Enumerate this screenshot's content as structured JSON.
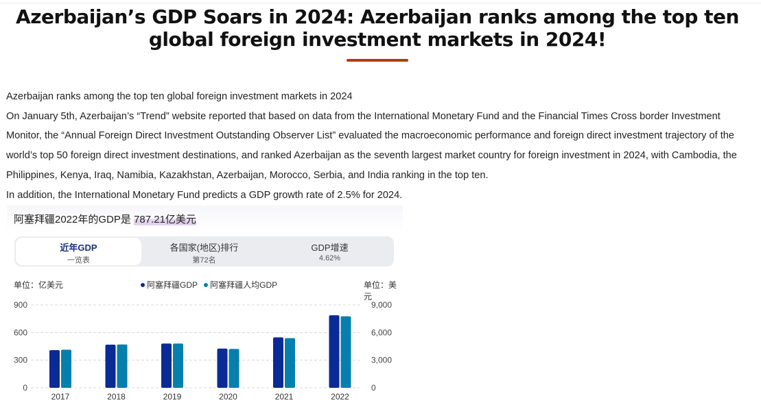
{
  "title": "Azerbaijan’s GDP Soars in 2024: Azerbaijan ranks among the top ten global foreign investment markets in 2024!",
  "article": {
    "paragraphs": [
      "Azerbaijan ranks among the top ten global foreign investment markets in 2024",
      "On January 5th, Azerbaijan’s “Trend” website reported that based on data from the International Monetary Fund and the Financial Times Cross border Investment Monitor, the “Annual Foreign Direct Investment Outstanding Observer List” evaluated the macroeconomic performance and foreign direct investment trajectory of the world’s top 50 foreign direct investment destinations, and ranked Azerbaijan as the seventh largest market country for foreign investment in 2024, with Cambodia, the Philippines, Kenya, Iraq, Namibia, Kazakhstan, Azerbaijan, Morocco, Serbia, and India ranking in the top ten.",
      "In addition, the International Monetary Fund predicts a GDP growth rate of 2.5% for 2024."
    ]
  },
  "chart_widget": {
    "title_prefix": "阿塞拜疆2022年的GDP是 ",
    "title_value": "787.21亿美元",
    "tabs": [
      {
        "line1": "近年GDP",
        "line2": "一览表",
        "active": true
      },
      {
        "line1": "各国家(地区)排行",
        "line2": "第72名",
        "active": false
      },
      {
        "line1": "GDP增速",
        "line2": "4.62%",
        "active": false
      }
    ],
    "unit_left": "单位：亿美元",
    "unit_right": "单位：美元"
  },
  "chart_data": {
    "type": "bar",
    "categories": [
      "2017",
      "2018",
      "2019",
      "2020",
      "2021",
      "2022"
    ],
    "series": [
      {
        "name": "阿塞拜疆GDP",
        "axis": "left",
        "color": "#0a2a96",
        "values": [
          409,
          469,
          481,
          426,
          548,
          787.21
        ]
      },
      {
        "name": "阿塞拜疆人均GDP",
        "axis": "right",
        "color": "#0580ad",
        "values": [
          4140,
          4700,
          4810,
          4220,
          5390,
          7760
        ]
      }
    ],
    "y_left": {
      "ticks": [
        "0",
        "300",
        "600",
        "900"
      ],
      "range": [
        0,
        900
      ]
    },
    "y_right": {
      "ticks": [
        "0",
        "3,000",
        "6,000",
        "9,000"
      ],
      "range": [
        0,
        9000
      ]
    },
    "grid": true,
    "legend": "top-center"
  }
}
